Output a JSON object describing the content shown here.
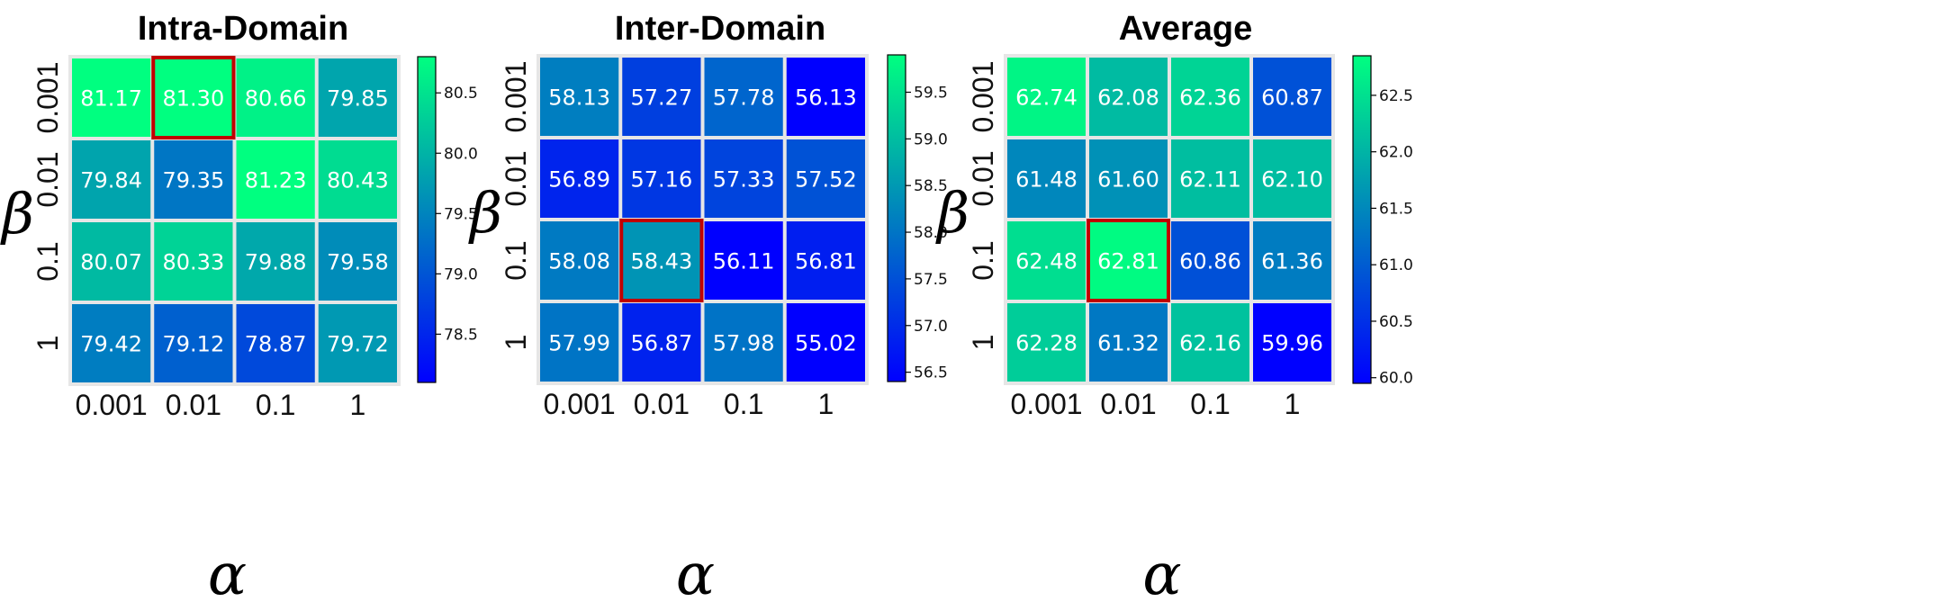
{
  "chart_data": [
    {
      "type": "heatmap",
      "title": "Intra-Domain",
      "xlabel": "α",
      "ylabel": "β",
      "x_categories": [
        "0.001",
        "0.01",
        "0.1",
        "1"
      ],
      "y_categories": [
        "0.001",
        "0.01",
        "0.1",
        "1"
      ],
      "values": [
        [
          81.17,
          81.3,
          80.66,
          79.85
        ],
        [
          79.84,
          79.35,
          81.23,
          80.43
        ],
        [
          80.07,
          80.33,
          79.88,
          79.58
        ],
        [
          79.42,
          79.12,
          78.87,
          79.72
        ]
      ],
      "highlight": {
        "row": 0,
        "col": 1
      },
      "colorbar": {
        "min": 78.1,
        "max": 80.8,
        "ticks": [
          "78.5",
          "79.0",
          "79.5",
          "80.0",
          "80.5"
        ]
      }
    },
    {
      "type": "heatmap",
      "title": "Inter-Domain",
      "xlabel": "α",
      "ylabel": "β",
      "x_categories": [
        "0.001",
        "0.01",
        "0.1",
        "1"
      ],
      "y_categories": [
        "0.001",
        "0.01",
        "0.1",
        "1"
      ],
      "values": [
        [
          58.13,
          57.27,
          57.78,
          56.13
        ],
        [
          56.89,
          57.16,
          57.33,
          57.52
        ],
        [
          58.08,
          58.43,
          56.11,
          56.81
        ],
        [
          57.99,
          56.87,
          57.98,
          55.02
        ]
      ],
      "highlight": {
        "row": 2,
        "col": 1
      },
      "colorbar": {
        "min": 56.4,
        "max": 59.9,
        "ticks": [
          "56.5",
          "57.0",
          "57.5",
          "58.0",
          "58.5",
          "59.0",
          "59.5"
        ]
      }
    },
    {
      "type": "heatmap",
      "title": "Average",
      "xlabel": "α",
      "ylabel": "β",
      "x_categories": [
        "0.001",
        "0.01",
        "0.1",
        "1"
      ],
      "y_categories": [
        "0.001",
        "0.01",
        "0.1",
        "1"
      ],
      "values": [
        [
          62.74,
          62.08,
          62.36,
          60.87
        ],
        [
          61.48,
          61.6,
          62.11,
          62.1
        ],
        [
          62.48,
          62.81,
          60.86,
          61.36
        ],
        [
          62.28,
          61.32,
          62.16,
          59.96
        ]
      ],
      "highlight": {
        "row": 2,
        "col": 1
      },
      "colorbar": {
        "min": 59.95,
        "max": 62.85,
        "ticks": [
          "60.0",
          "60.5",
          "61.0",
          "61.5",
          "62.0",
          "62.5"
        ]
      }
    }
  ],
  "colors": {
    "low": "#0000ff",
    "high": "#00ff80",
    "highlight_border": "#c00000",
    "cell_gap": "#e6e6e6",
    "cell_text": "#ffffff"
  }
}
